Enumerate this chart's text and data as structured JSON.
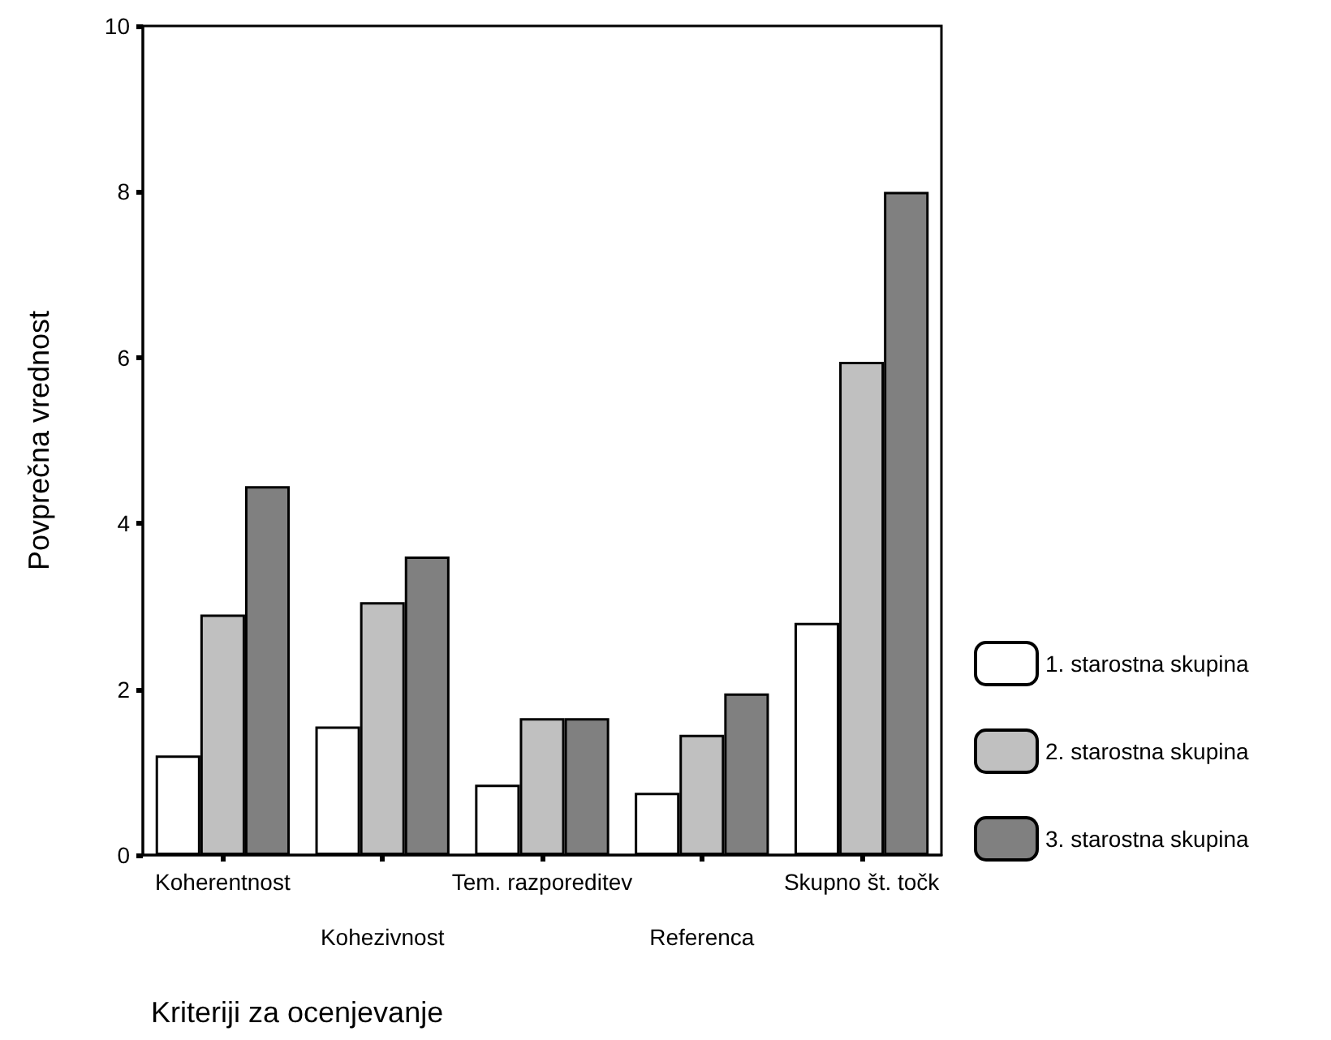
{
  "chart_data": {
    "type": "bar",
    "xlabel": "Kriteriji za ocenjevanje",
    "ylabel": "Povprečna vrednost",
    "categories": [
      "Koherentnost",
      "Kohezivnost",
      "Tem. razporeditev",
      "Referenca",
      "Skupno št. točk"
    ],
    "series": [
      {
        "name": "1. starostna skupina",
        "color": "#ffffff",
        "values": [
          1.2,
          1.55,
          0.85,
          0.75,
          2.8
        ]
      },
      {
        "name": "2. starostna skupina",
        "color": "#c0c0c0",
        "values": [
          2.9,
          3.05,
          1.65,
          1.45,
          5.95
        ]
      },
      {
        "name": "3. starostna skupina",
        "color": "#808080",
        "values": [
          4.45,
          3.6,
          1.65,
          1.95,
          8.0
        ]
      }
    ],
    "ylim": [
      0,
      10
    ],
    "yticks": [
      0,
      2,
      4,
      6,
      8,
      10
    ],
    "grid": false,
    "legend": "right"
  }
}
